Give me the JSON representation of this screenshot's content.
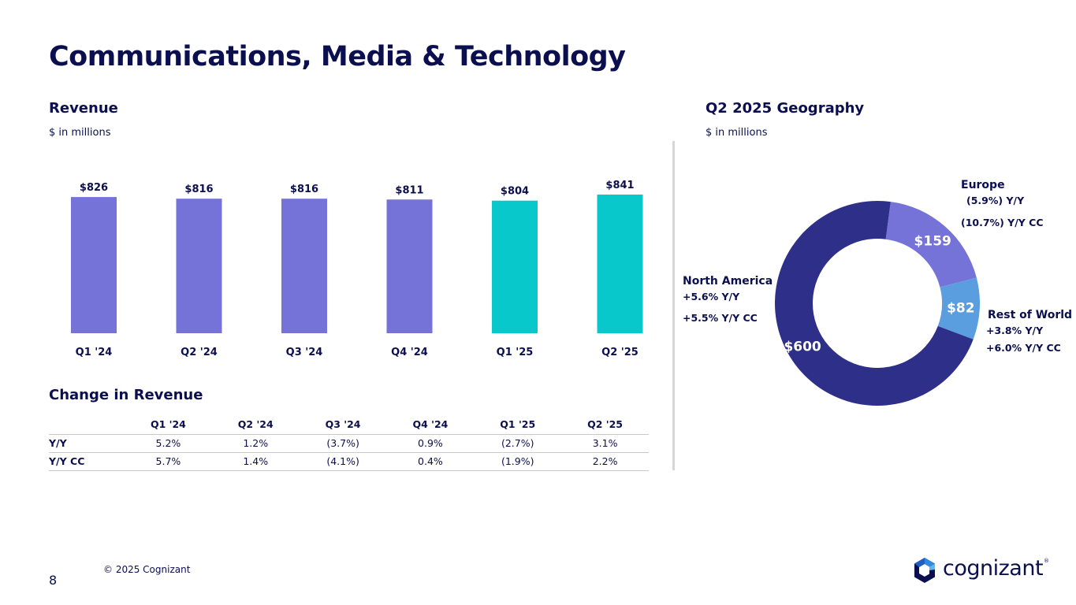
{
  "page": {
    "title": "Communications, Media & Technology",
    "revenue_heading": "Revenue",
    "revenue_unit": "$ in millions",
    "change_heading": "Change in Revenue",
    "geo_heading": "Q2 2025 Geography",
    "geo_unit": "$ in millions",
    "copyright": "© 2025 Cognizant",
    "page_number": "8",
    "logo_text": "cognizant",
    "logo_mark": "®"
  },
  "colors": {
    "navy_text": "#0b0f4f",
    "bar_2024": "#7573d8",
    "bar_2025": "#08c8cc",
    "north_america": "#2e2f88",
    "europe": "#7573d8",
    "rest_of_world": "#5a9ee0"
  },
  "change_table": {
    "columns": [
      "",
      "Q1 '24",
      "Q2 '24",
      "Q3 '24",
      "Q4 '24",
      "Q1 '25",
      "Q2 '25"
    ],
    "rows": [
      {
        "label": "Y/Y",
        "values": [
          "5.2%",
          "1.2%",
          "(3.7%)",
          "0.9%",
          "(2.7%)",
          "3.1%"
        ]
      },
      {
        "label": "Y/Y CC",
        "values": [
          "5.7%",
          "1.4%",
          "(4.1%)",
          "0.4%",
          "(1.9%)",
          "2.2%"
        ]
      }
    ]
  },
  "geo_labels": {
    "north_america": {
      "name": "North America",
      "yy": "+5.6%  Y/Y",
      "yycc": "+5.5% Y/Y CC"
    },
    "europe": {
      "name": "Europe",
      "yy": "(5.9%)  Y/Y",
      "yycc": "(10.7%) Y/Y CC"
    },
    "rest_of_world": {
      "name": "Rest of World",
      "yy": "+3.8%  Y/Y",
      "yycc": "+6.0%  Y/Y CC"
    }
  },
  "chart_data": [
    {
      "type": "bar",
      "categories": [
        "Q1 '24",
        "Q2 '24",
        "Q3 '24",
        "Q4 '24",
        "Q1 '25",
        "Q2 '25"
      ],
      "values": [
        826,
        816,
        816,
        811,
        804,
        841
      ],
      "data_labels": [
        "$826",
        "$816",
        "$816",
        "$811",
        "$804",
        "$841"
      ],
      "bar_colors": [
        "#7573d8",
        "#7573d8",
        "#7573d8",
        "#7573d8",
        "#08c8cc",
        "#08c8cc"
      ],
      "title": "Revenue",
      "subtitle": "$ in millions",
      "ylim": [
        0,
        860
      ],
      "grid": false
    },
    {
      "type": "pie",
      "donut": true,
      "title": "Q2 2025 Geography",
      "subtitle": "$ in millions",
      "slices": [
        {
          "name": "North America",
          "value": 600,
          "label": "$600",
          "color": "#2e2f88"
        },
        {
          "name": "Europe",
          "value": 159,
          "label": "$159",
          "color": "#7573d8"
        },
        {
          "name": "Rest of World",
          "value": 82,
          "label": "$82",
          "color": "#5a9ee0"
        }
      ]
    }
  ]
}
